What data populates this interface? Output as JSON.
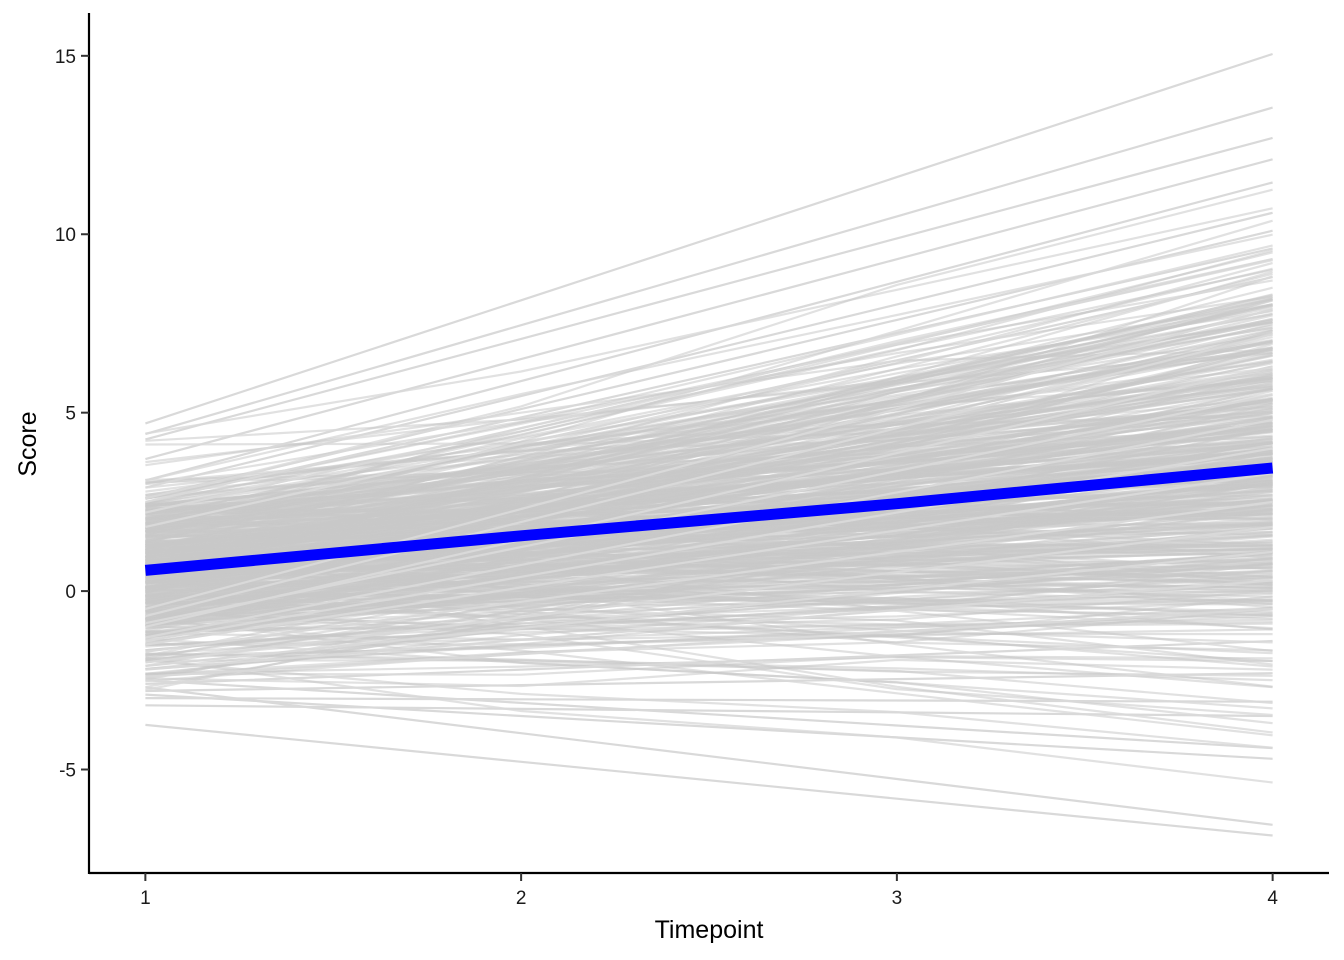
{
  "chart_data": {
    "type": "line",
    "title": "",
    "xlabel": "Timepoint",
    "ylabel": "Score",
    "x": [
      1,
      2,
      3,
      4
    ],
    "xlim": [
      0.85,
      4.15
    ],
    "ylim": [
      -7.9,
      16.2
    ],
    "x_ticks": [
      "1",
      "2",
      "3",
      "4"
    ],
    "y_ticks": [
      {
        "value": -5,
        "label": "-5"
      },
      {
        "value": 0,
        "label": "0"
      },
      {
        "value": 5,
        "label": "5"
      },
      {
        "value": 10,
        "label": "10"
      },
      {
        "value": 15,
        "label": "15"
      }
    ],
    "grid": false,
    "legend": "none",
    "individual_trajectories": {
      "color": "#c8c8c8",
      "count": 500,
      "endpoints_highlighted": [
        [
          4.7,
          15.05
        ],
        [
          4.4,
          13.55
        ],
        [
          4.25,
          12.7
        ],
        [
          3.7,
          12.1
        ],
        [
          3.1,
          11.45
        ],
        [
          2.9,
          10.6
        ],
        [
          2.6,
          10.1
        ],
        [
          2.5,
          9.6
        ],
        [
          2.2,
          9.3
        ],
        [
          1.8,
          8.8
        ],
        [
          -0.5,
          7.9
        ],
        [
          -0.7,
          7.2
        ],
        [
          -1.0,
          6.3
        ],
        [
          -0.9,
          5.5
        ],
        [
          -1.3,
          4.8
        ],
        [
          -1.4,
          4.0
        ],
        [
          -1.5,
          3.3
        ],
        [
          -1.7,
          2.5
        ],
        [
          -2.0,
          1.8
        ],
        [
          -2.1,
          1.1
        ],
        [
          -2.2,
          0.3
        ],
        [
          -2.4,
          -0.5
        ],
        [
          -2.6,
          -1.4
        ],
        [
          -2.8,
          -2.3
        ],
        [
          -3.0,
          -3.1
        ],
        [
          -3.2,
          -3.5
        ],
        [
          -2.5,
          -4.4
        ],
        [
          -2.9,
          -4.7
        ],
        [
          -2.7,
          -6.55
        ],
        [
          -3.75,
          -6.85
        ]
      ]
    },
    "series": [
      {
        "color": "#0000ff",
        "values": [
          0.58,
          1.55,
          2.45,
          3.45
        ]
      }
    ]
  }
}
